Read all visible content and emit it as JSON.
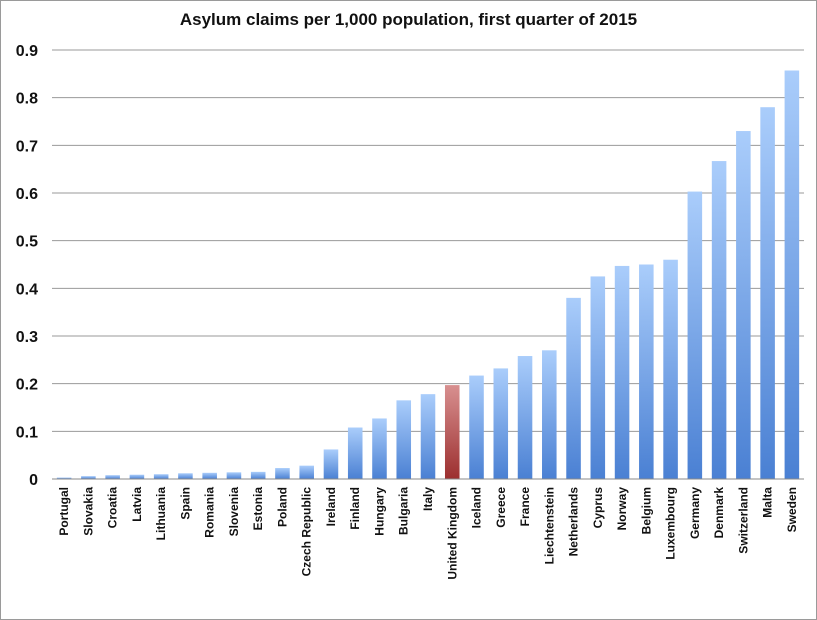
{
  "chart_data": {
    "type": "bar",
    "title": "Asylum claims per 1,000 population, first quarter of 2015",
    "xlabel": "",
    "ylabel": "",
    "ylim": [
      0,
      0.9
    ],
    "yticks": [
      "0",
      "0.1",
      "0.2",
      "0.3",
      "0.4",
      "0.5",
      "0.6",
      "0.7",
      "0.8",
      "0.9"
    ],
    "grid": true,
    "categories": [
      "Portugal",
      "Slovakia",
      "Croatia",
      "Latvia",
      "Lithuania",
      "Spain",
      "Romania",
      "Slovenia",
      "Estonia",
      "Poland",
      "Czech Republic",
      "Ireland",
      "Finland",
      "Hungary",
      "Bulgaria",
      "Italy",
      "United Kingdom",
      "Iceland",
      "Greece",
      "France",
      "Liechtenstein",
      "Netherlands",
      "Cyprus",
      "Norway",
      "Belgium",
      "Luxembourg",
      "Germany",
      "Denmark",
      "Switzerland",
      "Malta",
      "Sweden"
    ],
    "values": [
      0.003,
      0.006,
      0.008,
      0.009,
      0.01,
      0.012,
      0.013,
      0.014,
      0.015,
      0.023,
      0.028,
      0.062,
      0.108,
      0.127,
      0.165,
      0.178,
      0.197,
      0.217,
      0.232,
      0.258,
      0.27,
      0.38,
      0.425,
      0.447,
      0.45,
      0.46,
      0.603,
      0.667,
      0.73,
      0.78,
      0.857
    ],
    "highlight": "United Kingdom",
    "colors": {
      "bar_top": "#aacdfb",
      "bar_bottom": "#4a80d3",
      "highlight_top": "#d89090",
      "highlight_bottom": "#9c2f2f",
      "grid": "#9a9a9a"
    }
  }
}
